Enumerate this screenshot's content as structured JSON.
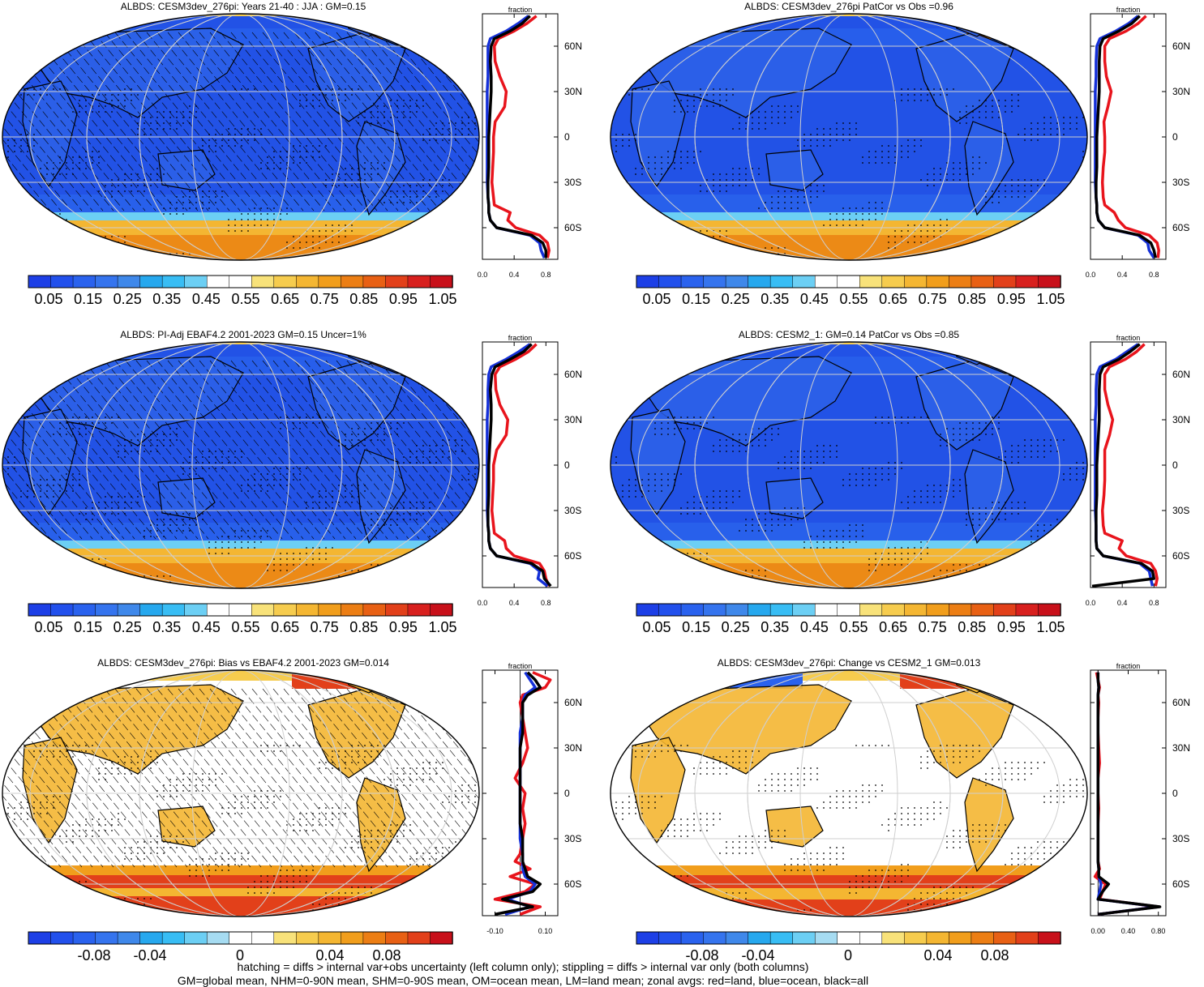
{
  "footnote": {
    "line1": "hatching = diffs > internal var+obs uncertainty (left column only); stippling = diffs > internal var only (both columns)",
    "line2": "GM=global mean, NHM=0-90N mean, SHM=0-90S mean, OM=ocean mean, LM=land mean; zonal avgs: red=land, blue=ocean, black=all"
  },
  "colors": {
    "land": "#e8141c",
    "ocean": "#1530d8",
    "all": "#000000",
    "abs_scale": [
      "#1d3fe6",
      "#2250ec",
      "#2a62ee",
      "#3574ee",
      "#3f88ea",
      "#26a8ee",
      "#38bdf4",
      "#6ccff4",
      "#ffffff",
      "#ffffff",
      "#f8e27a",
      "#f6cc4e",
      "#f4b632",
      "#f19e1c",
      "#ec7e14",
      "#e86014",
      "#e2401a",
      "#d8201e",
      "#c8101a"
    ],
    "diff_scale": [
      "#1d3fe6",
      "#2250ec",
      "#2a62ee",
      "#3574ee",
      "#3f88ea",
      "#26a8ee",
      "#38bdf4",
      "#6ccff4",
      "#a6dcf2",
      "#ffffff",
      "#ffffff",
      "#f8e27a",
      "#f6cc4e",
      "#f4b632",
      "#f19e1c",
      "#ec7e14",
      "#e86014",
      "#e2401a",
      "#c8101a"
    ]
  },
  "chart_data": [
    {
      "type": "heatmap",
      "panel": "top-left",
      "title": "ALBDS: CESM3dev_276pi: Years 21-40 : JJA : GM=0.15",
      "colorbar_labels": [
        "0.05",
        "0.15",
        "0.25",
        "0.35",
        "0.45",
        "0.55",
        "0.65",
        "0.75",
        "0.85",
        "0.95",
        "1.05"
      ],
      "overlay": "hatching+stippling",
      "zonal_profile": {
        "header": "fraction",
        "lat_labels": [
          "60N",
          "30N",
          "0",
          "30S",
          "60S"
        ],
        "x_ticks": [
          "0.0",
          "0.4",
          "0.8"
        ],
        "xlim": [
          0,
          0.95
        ],
        "lat": [
          -80,
          -75,
          -70,
          -65,
          -60,
          -55,
          -50,
          -45,
          -40,
          -30,
          -20,
          -10,
          0,
          10,
          20,
          30,
          40,
          50,
          60,
          65,
          70,
          75,
          80
        ],
        "land": [
          0.82,
          0.84,
          0.82,
          0.72,
          0.42,
          0.32,
          0.35,
          0.15,
          0.14,
          0.12,
          0.13,
          0.14,
          0.14,
          0.16,
          0.28,
          0.3,
          0.22,
          0.16,
          0.15,
          0.2,
          0.4,
          0.56,
          0.68
        ],
        "ocean": [
          0.78,
          0.74,
          0.72,
          0.6,
          0.18,
          0.1,
          0.08,
          0.08,
          0.07,
          0.06,
          0.06,
          0.06,
          0.06,
          0.06,
          0.06,
          0.06,
          0.07,
          0.07,
          0.07,
          0.1,
          0.3,
          0.45,
          0.58
        ],
        "all": [
          0.8,
          0.8,
          0.76,
          0.62,
          0.18,
          0.1,
          0.08,
          0.08,
          0.07,
          0.07,
          0.08,
          0.08,
          0.08,
          0.09,
          0.1,
          0.11,
          0.11,
          0.1,
          0.11,
          0.15,
          0.35,
          0.5,
          0.6
        ]
      }
    },
    {
      "type": "heatmap",
      "panel": "top-right",
      "title": "ALBDS: CESM3dev_276pi PatCor vs Obs =0.96",
      "colorbar_labels": [
        "0.05",
        "0.15",
        "0.25",
        "0.35",
        "0.45",
        "0.55",
        "0.65",
        "0.75",
        "0.85",
        "0.95",
        "1.05"
      ],
      "overlay": "stippling",
      "zonal_profile": {
        "header": "fraction",
        "lat_labels": [
          "60N",
          "30N",
          "0",
          "30S",
          "60S"
        ],
        "x_ticks": [
          "0.0",
          "0.4",
          "0.8"
        ],
        "xlim": [
          0,
          0.95
        ],
        "lat": [
          -80,
          -75,
          -70,
          -65,
          -60,
          -55,
          -50,
          -45,
          -40,
          -30,
          -20,
          -10,
          0,
          10,
          20,
          30,
          40,
          50,
          60,
          65,
          70,
          75,
          80
        ],
        "land": [
          0.85,
          0.86,
          0.84,
          0.74,
          0.44,
          0.35,
          0.3,
          0.18,
          0.16,
          0.15,
          0.16,
          0.18,
          0.18,
          0.17,
          0.22,
          0.26,
          0.2,
          0.18,
          0.18,
          0.24,
          0.45,
          0.6,
          0.7
        ],
        "ocean": [
          0.8,
          0.74,
          0.72,
          0.6,
          0.18,
          0.1,
          0.08,
          0.08,
          0.07,
          0.06,
          0.06,
          0.06,
          0.06,
          0.06,
          0.06,
          0.06,
          0.07,
          0.07,
          0.08,
          0.12,
          0.32,
          0.48,
          0.6
        ],
        "all": [
          0.82,
          0.8,
          0.76,
          0.62,
          0.18,
          0.1,
          0.08,
          0.08,
          0.07,
          0.07,
          0.08,
          0.08,
          0.08,
          0.09,
          0.1,
          0.11,
          0.11,
          0.11,
          0.12,
          0.16,
          0.36,
          0.52,
          0.62
        ]
      }
    },
    {
      "type": "heatmap",
      "panel": "middle-left",
      "title": "ALBDS: PI-Adj EBAF4.2 2001-2023 GM=0.15 Uncer=1%",
      "colorbar_labels": [
        "0.05",
        "0.15",
        "0.25",
        "0.35",
        "0.45",
        "0.55",
        "0.65",
        "0.75",
        "0.85",
        "0.95",
        "1.05"
      ],
      "overlay": "hatching+stippling",
      "zonal_profile": {
        "header": "fraction",
        "lat_labels": [
          "60N",
          "30N",
          "0",
          "30S",
          "60S"
        ],
        "x_ticks": [
          "0.0",
          "0.4",
          "0.8"
        ],
        "xlim": [
          0,
          0.95
        ],
        "lat": [
          -80,
          -75,
          -70,
          -65,
          -60,
          -55,
          -50,
          -45,
          -40,
          -30,
          -20,
          -10,
          0,
          10,
          20,
          30,
          40,
          50,
          60,
          65,
          70,
          75,
          80
        ],
        "land": [
          0.84,
          0.8,
          0.78,
          0.72,
          0.4,
          0.3,
          0.28,
          0.15,
          0.14,
          0.12,
          0.13,
          0.14,
          0.14,
          0.18,
          0.3,
          0.32,
          0.22,
          0.17,
          0.16,
          0.22,
          0.42,
          0.58,
          0.68
        ],
        "ocean": [
          0.82,
          0.7,
          0.72,
          0.6,
          0.18,
          0.1,
          0.08,
          0.08,
          0.07,
          0.06,
          0.06,
          0.06,
          0.06,
          0.06,
          0.06,
          0.06,
          0.07,
          0.07,
          0.08,
          0.11,
          0.3,
          0.46,
          0.6
        ],
        "all": [
          0.86,
          0.78,
          0.76,
          0.62,
          0.18,
          0.1,
          0.08,
          0.08,
          0.07,
          0.07,
          0.08,
          0.08,
          0.08,
          0.09,
          0.1,
          0.11,
          0.11,
          0.1,
          0.12,
          0.16,
          0.35,
          0.52,
          0.62
        ]
      }
    },
    {
      "type": "heatmap",
      "panel": "middle-right",
      "title": "ALBDS: CESM2_1: GM=0.14 PatCor vs Obs =0.85",
      "colorbar_labels": [
        "0.05",
        "0.15",
        "0.25",
        "0.35",
        "0.45",
        "0.55",
        "0.65",
        "0.75",
        "0.85",
        "0.95",
        "1.05"
      ],
      "overlay": "stippling",
      "zonal_profile": {
        "header": "fraction",
        "lat_labels": [
          "60N",
          "30N",
          "0",
          "30S",
          "60S"
        ],
        "x_ticks": [
          "0.0",
          "0.4",
          "0.8"
        ],
        "xlim": [
          0,
          0.95
        ],
        "lat": [
          -80,
          -75,
          -70,
          -65,
          -60,
          -55,
          -50,
          -45,
          -40,
          -30,
          -20,
          -10,
          0,
          10,
          20,
          30,
          40,
          50,
          60,
          65,
          70,
          75,
          80
        ],
        "land": [
          0.82,
          0.84,
          0.82,
          0.76,
          0.45,
          0.36,
          0.4,
          0.18,
          0.16,
          0.15,
          0.17,
          0.18,
          0.18,
          0.18,
          0.24,
          0.28,
          0.22,
          0.18,
          0.18,
          0.24,
          0.44,
          0.58,
          0.68
        ],
        "ocean": [
          0.78,
          0.76,
          0.74,
          0.62,
          0.16,
          0.08,
          0.07,
          0.07,
          0.07,
          0.06,
          0.06,
          0.06,
          0.06,
          0.06,
          0.06,
          0.06,
          0.07,
          0.07,
          0.08,
          0.12,
          0.32,
          0.46,
          0.6
        ],
        "all": [
          0.02,
          0.8,
          0.78,
          0.64,
          0.16,
          0.08,
          0.07,
          0.07,
          0.07,
          0.07,
          0.08,
          0.08,
          0.08,
          0.09,
          0.1,
          0.11,
          0.11,
          0.11,
          0.12,
          0.16,
          0.36,
          0.5,
          0.62
        ]
      }
    },
    {
      "type": "heatmap",
      "panel": "bottom-left",
      "title": "ALBDS: CESM3dev_276pi: Bias vs EBAF4.2 2001-2023 GM=0.014",
      "colorbar_labels": [
        "-0.08",
        "-0.04",
        "0",
        "0.04",
        "0.08"
      ],
      "overlay": "hatching+stippling",
      "zonal_profile": {
        "header": "fraction",
        "lat_labels": [
          "60N",
          "30N",
          "0",
          "30S",
          "60S"
        ],
        "x_ticks": [
          "-0.10",
          "0.10"
        ],
        "xlim": [
          -0.15,
          0.15
        ],
        "lat": [
          -80,
          -75,
          -70,
          -65,
          -60,
          -55,
          -50,
          -45,
          -40,
          -30,
          -20,
          -10,
          0,
          10,
          20,
          30,
          40,
          50,
          60,
          65,
          70,
          75,
          80
        ],
        "land": [
          0.0,
          0.08,
          -0.1,
          0.02,
          0.06,
          -0.04,
          0.04,
          -0.02,
          0.0,
          0.01,
          0.02,
          0.01,
          0.02,
          -0.02,
          0.01,
          0.03,
          0.02,
          0.01,
          0.0,
          0.01,
          0.1,
          0.12,
          0.05
        ],
        "ocean": [
          -0.06,
          0.04,
          -0.05,
          0.04,
          0.06,
          0.02,
          0.01,
          0.01,
          0.01,
          0.0,
          0.0,
          0.0,
          0.0,
          0.0,
          0.0,
          0.0,
          0.0,
          0.01,
          0.01,
          0.02,
          0.06,
          0.04,
          0.02
        ],
        "all": [
          -0.1,
          0.05,
          -0.07,
          0.05,
          0.08,
          0.03,
          0.02,
          0.01,
          0.01,
          0.01,
          0.0,
          0.0,
          0.0,
          0.0,
          0.0,
          0.0,
          0.01,
          0.01,
          0.01,
          0.03,
          0.08,
          0.06,
          0.03
        ]
      }
    },
    {
      "type": "heatmap",
      "panel": "bottom-right",
      "title": "ALBDS: CESM3dev_276pi: Change vs CESM2_1 GM=0.013",
      "colorbar_labels": [
        "-0.08",
        "-0.04",
        "0",
        "0.04",
        "0.08"
      ],
      "overlay": "stippling",
      "zonal_profile": {
        "header": "fraction",
        "lat_labels": [
          "60N",
          "30N",
          "0",
          "30S",
          "60S"
        ],
        "x_ticks": [
          "0.00",
          "0.40",
          "0.80"
        ],
        "xlim": [
          -0.1,
          0.9
        ],
        "lat": [
          -80,
          -75,
          -70,
          -65,
          -60,
          -55,
          -50,
          -45,
          -40,
          -30,
          -20,
          -10,
          0,
          10,
          20,
          30,
          40,
          50,
          60,
          65,
          70,
          75,
          80
        ],
        "land": [
          0.0,
          0.8,
          0.02,
          0.06,
          0.1,
          -0.04,
          0.02,
          0.0,
          0.0,
          0.0,
          0.0,
          0.01,
          0.0,
          0.0,
          0.02,
          0.01,
          0.0,
          0.0,
          0.01,
          0.0,
          0.02,
          0.0,
          -0.02
        ],
        "ocean": [
          0.0,
          0.8,
          0.0,
          0.02,
          0.04,
          0.01,
          0.01,
          0.0,
          0.0,
          0.0,
          0.0,
          0.0,
          0.0,
          0.0,
          0.0,
          0.0,
          0.0,
          0.0,
          0.0,
          0.0,
          0.01,
          0.0,
          0.0
        ],
        "all": [
          0.0,
          0.82,
          0.0,
          0.06,
          0.14,
          0.01,
          0.01,
          0.0,
          0.0,
          0.0,
          0.0,
          0.0,
          0.0,
          0.0,
          0.0,
          0.0,
          0.0,
          0.0,
          0.0,
          0.0,
          0.01,
          0.0,
          0.0
        ]
      }
    }
  ]
}
